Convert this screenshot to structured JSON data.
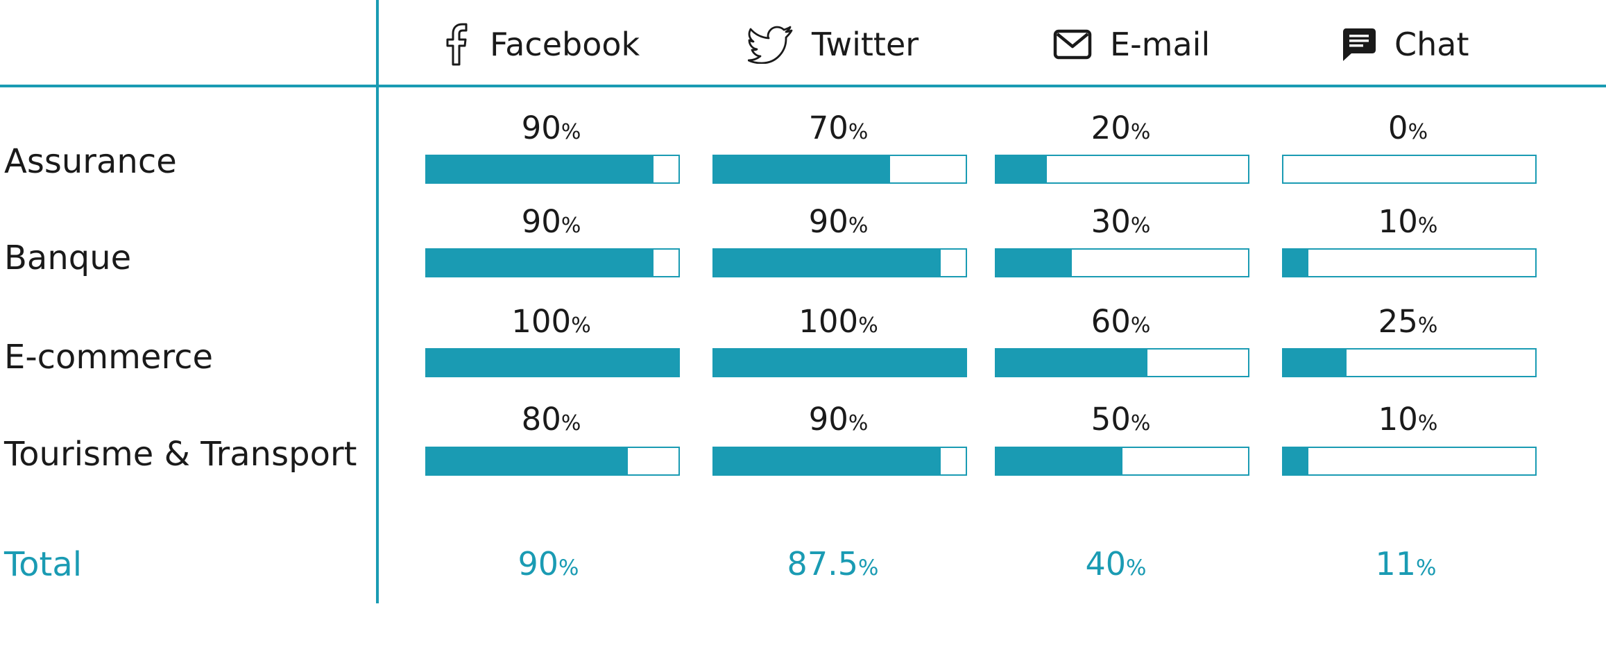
{
  "chart_data": {
    "type": "table",
    "columns": [
      {
        "label": "Facebook",
        "icon": "facebook-icon"
      },
      {
        "label": "Twitter",
        "icon": "twitter-icon"
      },
      {
        "label": "E-mail",
        "icon": "email-icon"
      },
      {
        "label": "Chat",
        "icon": "chat-icon"
      }
    ],
    "rows": [
      {
        "label": "Assurance",
        "values": [
          90,
          70,
          20,
          0
        ]
      },
      {
        "label": "Banque",
        "values": [
          90,
          90,
          30,
          10
        ]
      },
      {
        "label": "E-commerce",
        "values": [
          100,
          100,
          60,
          25
        ]
      },
      {
        "label": "Tourisme & Transport",
        "values": [
          80,
          90,
          50,
          10
        ]
      }
    ],
    "total": {
      "label": "Total",
      "values": [
        90,
        87.5,
        40,
        11
      ]
    },
    "unit": "%",
    "accent_color": "#1a9bb3"
  }
}
